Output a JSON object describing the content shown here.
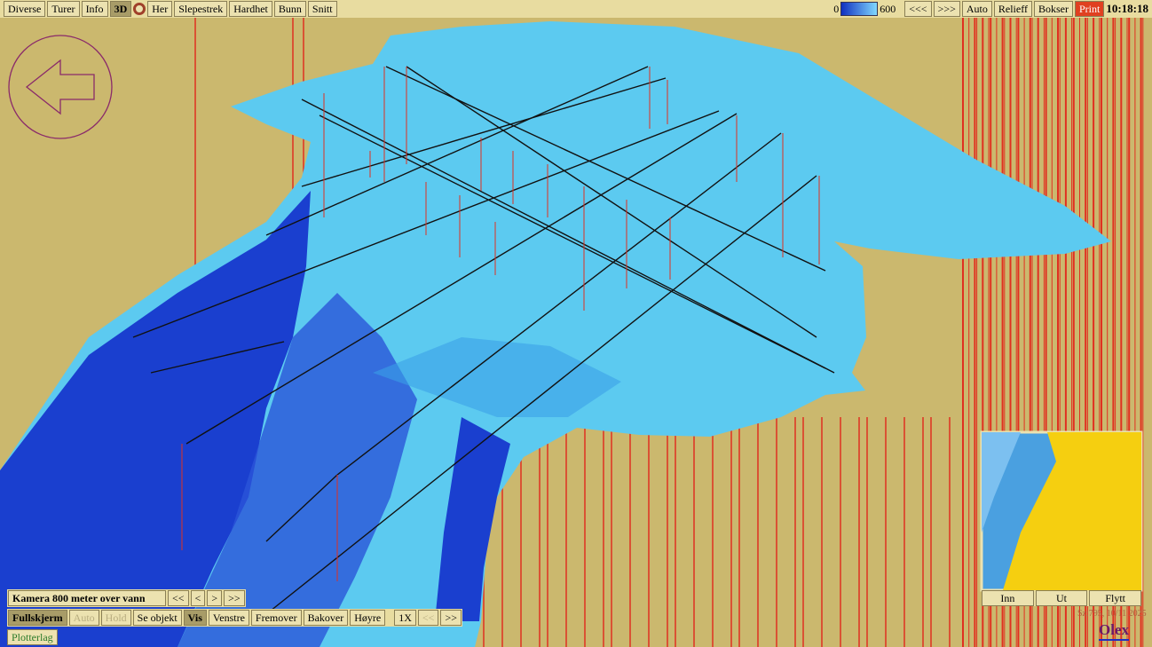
{
  "toolbar_left": [
    "Diverse",
    "Turer",
    "Info",
    "3D",
    "Her",
    "Slepestrek",
    "Hardhet",
    "Bunn",
    "Snitt"
  ],
  "scale": {
    "min": 0,
    "max": 600
  },
  "toolbar_right": [
    "<<<",
    ">>>",
    "Auto",
    "Relieff",
    "Bokser",
    "Print"
  ],
  "clock": "10:18:18",
  "camera": {
    "label": "Kamera 800 meter over vann",
    "buttons": [
      "<<",
      "<",
      ">",
      ">>"
    ]
  },
  "controls": [
    "Fullskjerm",
    "Auto",
    "Hold",
    "Se objekt",
    "Vis",
    "Venstre",
    "Fremover",
    "Bakover",
    "Høyre",
    "1X",
    "<<",
    ">>"
  ],
  "plotter": "Plotterlag",
  "minimap": {
    "buttons": [
      "Inn",
      "Ut",
      "Flytt"
    ]
  },
  "status": "Sz:795, 10/11 2025",
  "logo": "Olex"
}
